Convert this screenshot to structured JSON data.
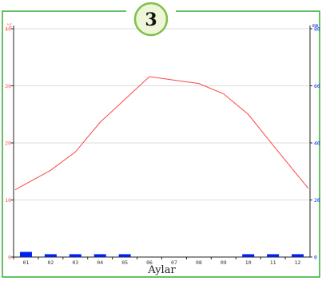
{
  "badge": {
    "number": "3"
  },
  "colors": {
    "frame": "#33aa33",
    "badge_fill": "#eef6d8",
    "badge_stroke": "#7fc04a",
    "temperature": "#ff4444",
    "precipitation": "#0022ee",
    "grid": "#dddddd",
    "axis": "#222222"
  },
  "chart_data": {
    "type": "bar",
    "xlabel": "Aylar",
    "categories": [
      "01",
      "02",
      "03",
      "04",
      "05",
      "06",
      "07",
      "08",
      "09",
      "10",
      "11",
      "12"
    ],
    "left_axis": {
      "unit": "°C",
      "range": [
        0,
        40
      ],
      "ticks": [
        0,
        10,
        20,
        30,
        40
      ]
    },
    "right_axis": {
      "unit": "mm",
      "range": [
        0,
        80
      ],
      "ticks": [
        0,
        20,
        40,
        60,
        80
      ]
    },
    "grid": true,
    "series": [
      {
        "type": "line",
        "axis": "left",
        "values": [
          11.8,
          15.2,
          18.4,
          23.6,
          27.6,
          31.6,
          31.0,
          30.4,
          28.6,
          25.0,
          19.6,
          12.0
        ]
      },
      {
        "type": "bar",
        "axis": "right",
        "values": [
          1.8,
          1.0,
          1.0,
          1.0,
          1.0,
          0,
          0,
          0,
          0,
          1.0,
          1.0,
          1.0
        ]
      }
    ]
  }
}
